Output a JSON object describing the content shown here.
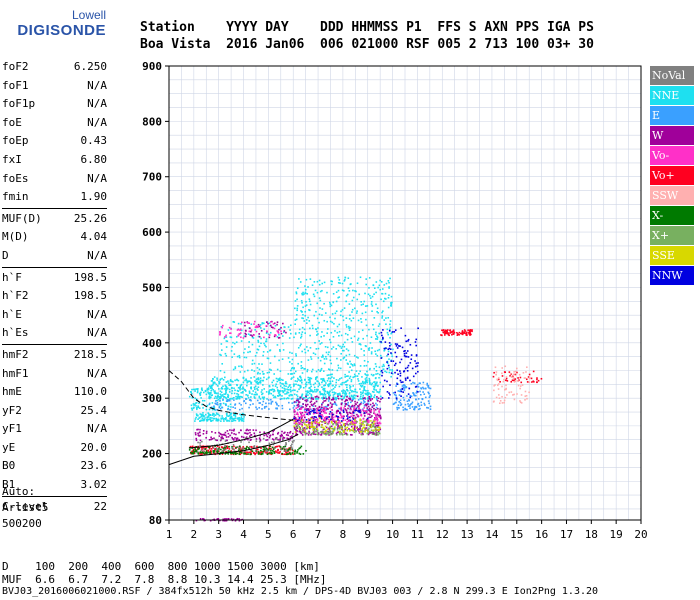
{
  "logo": {
    "line1": "Lowell",
    "line2": "DIGISONDE"
  },
  "header": {
    "line1": "Station    YYYY DAY    DDD HHMMSS P1  FFS S AXN PPS IGA PS",
    "line2": "Boa Vista  2016 Jan06  006 021000 RSF 005 2 713 100 03+ 30"
  },
  "params": {
    "group1": [
      {
        "k": "foF2",
        "v": "6.250"
      },
      {
        "k": "foF1",
        "v": "N/A"
      },
      {
        "k": "foF1p",
        "v": "N/A"
      },
      {
        "k": "foE",
        "v": "N/A"
      },
      {
        "k": "foEp",
        "v": "0.43"
      },
      {
        "k": "fxI",
        "v": "6.80"
      },
      {
        "k": "foEs",
        "v": "N/A"
      },
      {
        "k": "fmin",
        "v": "1.90"
      }
    ],
    "group2": [
      {
        "k": "MUF(D)",
        "v": "25.26"
      },
      {
        "k": "M(D)",
        "v": "4.04"
      },
      {
        "k": "D",
        "v": "N/A"
      }
    ],
    "group3": [
      {
        "k": "h`F",
        "v": "198.5"
      },
      {
        "k": "h`F2",
        "v": "198.5"
      },
      {
        "k": "h`E",
        "v": "N/A"
      },
      {
        "k": "h`Es",
        "v": "N/A"
      }
    ],
    "group4": [
      {
        "k": "hmF2",
        "v": "218.5"
      },
      {
        "k": "hmF1",
        "v": "N/A"
      },
      {
        "k": "hmE",
        "v": "110.0"
      },
      {
        "k": "yF2",
        "v": "25.4"
      },
      {
        "k": "yF1",
        "v": "N/A"
      },
      {
        "k": "yE",
        "v": "20.0"
      },
      {
        "k": "B0",
        "v": "23.6"
      },
      {
        "k": "B1",
        "v": "3.02"
      }
    ],
    "group5": [
      {
        "k": "C-level",
        "v": "22"
      }
    ]
  },
  "auto": {
    "line1": "Auto:",
    "line2": "Artist5",
    "line3": "500200"
  },
  "legend": [
    {
      "label": "NoVal",
      "color": "#808080"
    },
    {
      "label": "NNE",
      "color": "#1ee0f0"
    },
    {
      "label": "E",
      "color": "#3aa0ff"
    },
    {
      "label": "W",
      "color": "#a0009a"
    },
    {
      "label": "Vo-",
      "color": "#ff30c8"
    },
    {
      "label": "Vo+",
      "color": "#ff0020"
    },
    {
      "label": "SSW",
      "color": "#ffb0b0"
    },
    {
      "label": "X-",
      "color": "#007a00"
    },
    {
      "label": "X+",
      "color": "#78b060"
    },
    {
      "label": "SSE",
      "color": "#d8d800"
    },
    {
      "label": "NNW",
      "color": "#0000e0"
    }
  ],
  "bottom": {
    "line1": "D    100  200  400  600  800 1000 1500 3000 [km]",
    "line2": "MUF  6.6  6.7  7.2  7.8  8.8 10.3 14.4 25.3 [MHz]",
    "line3": "BVJ03_2016006021000.RSF / 384fx512h 50 kHz 2.5 km / DPS-4D BVJ03 003 / 2.8 N 299.3 E Ion2Png 1.3.20"
  },
  "chart_data": {
    "type": "scatter",
    "title": "",
    "xlabel": "",
    "ylabel": "",
    "xlim": [
      1,
      20
    ],
    "ylim": [
      80,
      900
    ],
    "xticks": [
      1,
      2,
      3,
      4,
      5,
      6,
      7,
      8,
      9,
      10,
      11,
      12,
      13,
      14,
      15,
      16,
      17,
      18,
      19,
      20
    ],
    "yticks": [
      80,
      200,
      300,
      400,
      500,
      600,
      700,
      800,
      900
    ],
    "grid": true,
    "clusters": [
      {
        "legend": "NNE",
        "color": "#1ee0f0",
        "x": [
          2.5,
          9.5
        ],
        "y": [
          300,
          340
        ],
        "n": 700
      },
      {
        "legend": "NNE",
        "color": "#1ee0f0",
        "x": [
          2.0,
          4.0
        ],
        "y": [
          260,
          275
        ],
        "n": 150
      },
      {
        "legend": "NNE",
        "color": "#1ee0f0",
        "x": [
          6.0,
          10.0
        ],
        "y": [
          340,
          520
        ],
        "n": 500
      },
      {
        "legend": "NNE",
        "color": "#1ee0f0",
        "x": [
          3.0,
          6.0
        ],
        "y": [
          345,
          440
        ],
        "n": 160
      },
      {
        "legend": "NNE",
        "color": "#1ee0f0",
        "x": [
          1.8,
          3.5
        ],
        "y": [
          280,
          320
        ],
        "n": 100
      },
      {
        "legend": "E",
        "color": "#3aa0ff",
        "x": [
          10.0,
          11.5
        ],
        "y": [
          280,
          330
        ],
        "n": 130
      },
      {
        "legend": "E",
        "color": "#3aa0ff",
        "x": [
          2.5,
          9.5
        ],
        "y": [
          280,
          300
        ],
        "n": 160
      },
      {
        "legend": "W",
        "color": "#a0009a",
        "x": [
          6.0,
          9.5
        ],
        "y": [
          235,
          305
        ],
        "n": 500
      },
      {
        "legend": "W",
        "color": "#a0009a",
        "x": [
          2.0,
          6.0
        ],
        "y": [
          225,
          245
        ],
        "n": 150
      },
      {
        "legend": "W",
        "color": "#a0009a",
        "x": [
          4.0,
          5.8
        ],
        "y": [
          410,
          440
        ],
        "n": 40
      },
      {
        "legend": "W",
        "color": "#a0009a",
        "x": [
          2.0,
          4.0
        ],
        "y": [
          80,
          84
        ],
        "n": 40
      },
      {
        "legend": "Vo-",
        "color": "#ff30c8",
        "x": [
          6.0,
          9.5
        ],
        "y": [
          255,
          285
        ],
        "n": 160
      },
      {
        "legend": "Vo-",
        "color": "#ff30c8",
        "x": [
          3.0,
          5.5
        ],
        "y": [
          410,
          440
        ],
        "n": 50
      },
      {
        "legend": "Vo+",
        "color": "#ff0020",
        "x": [
          11.8,
          13.2
        ],
        "y": [
          415,
          425
        ],
        "n": 80
      },
      {
        "legend": "Vo+",
        "color": "#ff0020",
        "x": [
          1.8,
          6.0
        ],
        "y": [
          200,
          215
        ],
        "n": 220
      },
      {
        "legend": "Vo+",
        "color": "#ff0020",
        "x": [
          14.0,
          16.0
        ],
        "y": [
          330,
          350
        ],
        "n": 40
      },
      {
        "legend": "SSW",
        "color": "#ffb0b0",
        "x": [
          14.0,
          15.5
        ],
        "y": [
          290,
          360
        ],
        "n": 80
      },
      {
        "legend": "X-",
        "color": "#007a00",
        "x": [
          1.8,
          6.5
        ],
        "y": [
          200,
          215
        ],
        "n": 180
      },
      {
        "legend": "X+",
        "color": "#78b060",
        "x": [
          6.0,
          9.5
        ],
        "y": [
          235,
          260
        ],
        "n": 130
      },
      {
        "legend": "SSE",
        "color": "#d8d800",
        "x": [
          6.0,
          9.5
        ],
        "y": [
          240,
          265
        ],
        "n": 100
      },
      {
        "legend": "NNW",
        "color": "#0000e0",
        "x": [
          9.5,
          11.0
        ],
        "y": [
          300,
          430
        ],
        "n": 120
      },
      {
        "legend": "NNW",
        "color": "#0000e0",
        "x": [
          6.0,
          9.0
        ],
        "y": [
          260,
          280
        ],
        "n": 50
      },
      {
        "legend": "NoVal",
        "color": "#808080",
        "x": [
          2.0,
          6.0
        ],
        "y": [
          205,
          230
        ],
        "n": 80
      }
    ],
    "profile_curves": [
      {
        "name": "traces-dashed",
        "style": "dashed",
        "points": [
          [
            1.0,
            350
          ],
          [
            1.5,
            330
          ],
          [
            2.0,
            300
          ],
          [
            2.5,
            285
          ],
          [
            3.0,
            278
          ],
          [
            4.0,
            270
          ],
          [
            5.0,
            265
          ],
          [
            6.0,
            260
          ]
        ]
      },
      {
        "name": "trace-upper",
        "style": "solid",
        "points": [
          [
            1.8,
            210
          ],
          [
            3.0,
            215
          ],
          [
            4.0,
            225
          ],
          [
            5.0,
            238
          ],
          [
            5.5,
            250
          ],
          [
            6.0,
            262
          ]
        ]
      },
      {
        "name": "profile",
        "style": "solid",
        "points": [
          [
            1.0,
            180
          ],
          [
            2.0,
            195
          ],
          [
            3.0,
            200
          ],
          [
            4.0,
            205
          ],
          [
            5.0,
            215
          ],
          [
            5.8,
            225
          ],
          [
            6.2,
            235
          ]
        ]
      }
    ]
  }
}
